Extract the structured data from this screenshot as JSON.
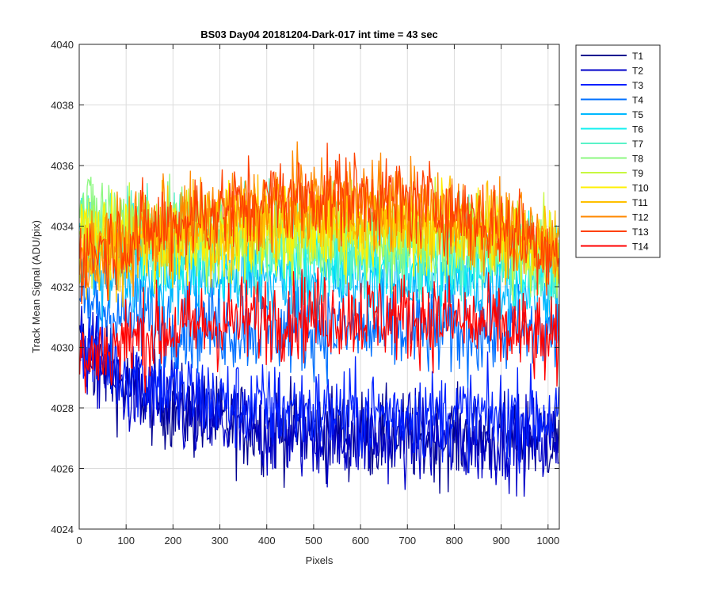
{
  "chart_data": {
    "type": "line",
    "title": "BS03 Day04 20181204-Dark-017 int time = 43 sec",
    "xlabel": "Pixels",
    "ylabel": "Track Mean Signal (ADU/pix)",
    "xlim": [
      0,
      1024
    ],
    "ylim": [
      4024,
      4040
    ],
    "xticks": [
      0,
      100,
      200,
      300,
      400,
      500,
      600,
      700,
      800,
      900,
      1000
    ],
    "yticks": [
      4024,
      4026,
      4028,
      4030,
      4032,
      4034,
      4036,
      4038,
      4040
    ],
    "grid": true,
    "legend_position": "outside-right",
    "series": [
      {
        "name": "T1",
        "color": "#00008F",
        "values": [
          4030.0,
          4028.7,
          4028.0,
          4027.5,
          4027.3,
          4027.2,
          4027.1,
          4027.0,
          4027.0,
          4027.0,
          4027.0
        ]
      },
      {
        "name": "T2",
        "color": "#0000C8",
        "values": [
          4030.0,
          4028.6,
          4027.9,
          4027.4,
          4027.2,
          4027.1,
          4027.0,
          4027.0,
          4026.9,
          4026.9,
          4026.9
        ]
      },
      {
        "name": "T3",
        "color": "#0020FF",
        "values": [
          4030.2,
          4029.2,
          4028.6,
          4028.2,
          4028.0,
          4027.9,
          4027.8,
          4027.8,
          4027.8,
          4027.7,
          4027.7
        ]
      },
      {
        "name": "T4",
        "color": "#0070FF",
        "values": [
          4031.5,
          4031.0,
          4030.8,
          4030.7,
          4030.6,
          4030.6,
          4030.5,
          4030.5,
          4030.5,
          4030.5,
          4030.4
        ]
      },
      {
        "name": "T5",
        "color": "#00B8FF",
        "values": [
          4032.8,
          4032.5,
          4032.3,
          4032.3,
          4032.2,
          4032.2,
          4032.2,
          4032.2,
          4032.1,
          4032.1,
          4032.0
        ]
      },
      {
        "name": "T6",
        "color": "#10F0F0",
        "values": [
          4033.6,
          4033.3,
          4033.1,
          4033.0,
          4033.0,
          4033.0,
          4033.0,
          4032.9,
          4032.9,
          4032.8,
          4032.6
        ]
      },
      {
        "name": "T7",
        "color": "#5AF2C8",
        "values": [
          4034.0,
          4033.7,
          4033.5,
          4033.4,
          4033.4,
          4033.4,
          4033.3,
          4033.3,
          4033.2,
          4033.1,
          4032.9
        ]
      },
      {
        "name": "T8",
        "color": "#8CF880",
        "values": [
          4034.5,
          4034.4,
          4034.0,
          4033.8,
          4033.7,
          4033.7,
          4033.7,
          4033.6,
          4033.5,
          4033.4,
          4033.1
        ]
      },
      {
        "name": "T9",
        "color": "#C8F840",
        "values": [
          4034.0,
          4033.8,
          4033.7,
          4033.7,
          4033.7,
          4033.8,
          4033.8,
          4033.7,
          4033.6,
          4033.5,
          4033.2
        ]
      },
      {
        "name": "T10",
        "color": "#FFF000",
        "values": [
          4033.5,
          4033.5,
          4033.6,
          4033.8,
          4033.9,
          4034.0,
          4034.0,
          4034.0,
          4033.9,
          4033.7,
          4033.3
        ]
      },
      {
        "name": "T11",
        "color": "#FFC000",
        "values": [
          4033.0,
          4033.3,
          4033.6,
          4034.0,
          4034.2,
          4034.4,
          4034.4,
          4034.3,
          4034.1,
          4033.8,
          4033.2
        ]
      },
      {
        "name": "T12",
        "color": "#FF8800",
        "values": [
          4033.0,
          4033.5,
          4034.0,
          4034.4,
          4034.7,
          4034.9,
          4034.9,
          4034.7,
          4034.4,
          4033.9,
          4033.1
        ]
      },
      {
        "name": "T13",
        "color": "#FF4000",
        "values": [
          4033.0,
          4033.6,
          4034.1,
          4034.5,
          4034.8,
          4035.0,
          4035.0,
          4034.8,
          4034.5,
          4034.0,
          4033.1
        ]
      },
      {
        "name": "T14",
        "color": "#FF0000",
        "values": [
          4029.5,
          4030.2,
          4030.6,
          4030.8,
          4031.0,
          4031.1,
          4031.1,
          4031.0,
          4030.9,
          4030.6,
          4030.0
        ]
      }
    ],
    "x": [
      0,
      100,
      200,
      300,
      400,
      500,
      600,
      700,
      800,
      900,
      1024
    ]
  }
}
